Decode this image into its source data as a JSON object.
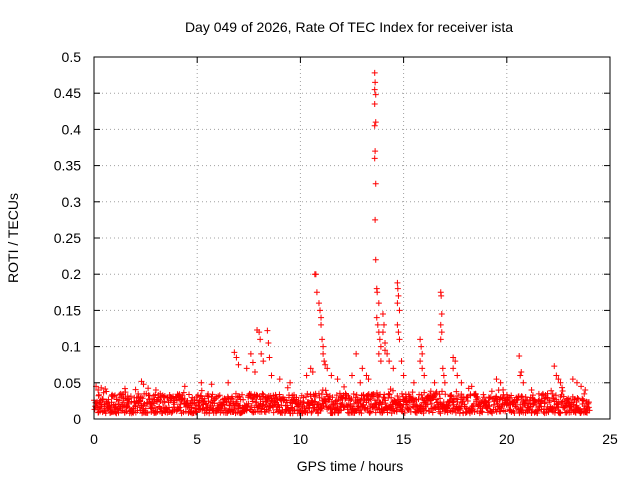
{
  "chart_data": {
    "type": "scatter",
    "title": "Day 049 of 2026, Rate Of TEC Index for receiver ista",
    "xlabel": "GPS time / hours",
    "ylabel": "ROTI / TECUs",
    "xlim": [
      0,
      25
    ],
    "ylim": [
      0,
      0.5
    ],
    "x_ticks": [
      "0",
      "5",
      "10",
      "15",
      "20",
      "25"
    ],
    "y_ticks": [
      "0",
      "0.05",
      "0.1",
      "0.15",
      "0.2",
      "0.25",
      "0.3",
      "0.35",
      "0.4",
      "0.45",
      "0.5"
    ],
    "grid": true,
    "marker": "+",
    "color": "#ff0000",
    "series": [
      {
        "name": "ROTI",
        "background": {
          "x_range": [
            0,
            24
          ],
          "baseline_min": 0.008,
          "baseline_max": 0.035,
          "note": "dense continuous band of ROTI values between roughly 0.01 and 0.04 TECU/min"
        },
        "points": [
          [
            0.1,
            0.045
          ],
          [
            0.2,
            0.04
          ],
          [
            0.35,
            0.043
          ],
          [
            0.6,
            0.038
          ],
          [
            1.5,
            0.042
          ],
          [
            2.3,
            0.052
          ],
          [
            2.4,
            0.048
          ],
          [
            3.0,
            0.04
          ],
          [
            4.4,
            0.045
          ],
          [
            5.2,
            0.05
          ],
          [
            5.7,
            0.048
          ],
          [
            6.5,
            0.05
          ],
          [
            6.8,
            0.092
          ],
          [
            6.9,
            0.085
          ],
          [
            7.0,
            0.075
          ],
          [
            7.4,
            0.07
          ],
          [
            7.6,
            0.09
          ],
          [
            7.7,
            0.078
          ],
          [
            7.8,
            0.065
          ],
          [
            7.9,
            0.123
          ],
          [
            8.0,
            0.12
          ],
          [
            8.05,
            0.11
          ],
          [
            8.1,
            0.09
          ],
          [
            8.2,
            0.08
          ],
          [
            8.4,
            0.122
          ],
          [
            8.45,
            0.105
          ],
          [
            8.5,
            0.085
          ],
          [
            8.6,
            0.06
          ],
          [
            9.0,
            0.055
          ],
          [
            9.5,
            0.05
          ],
          [
            10.3,
            0.06
          ],
          [
            10.5,
            0.07
          ],
          [
            10.6,
            0.065
          ],
          [
            10.7,
            0.2
          ],
          [
            10.75,
            0.2
          ],
          [
            10.8,
            0.175
          ],
          [
            10.9,
            0.16
          ],
          [
            10.95,
            0.15
          ],
          [
            11.0,
            0.14
          ],
          [
            11.0,
            0.13
          ],
          [
            11.05,
            0.11
          ],
          [
            11.1,
            0.1
          ],
          [
            11.1,
            0.09
          ],
          [
            11.15,
            0.08
          ],
          [
            11.2,
            0.075
          ],
          [
            11.3,
            0.07
          ],
          [
            11.5,
            0.06
          ],
          [
            11.8,
            0.055
          ],
          [
            12.5,
            0.06
          ],
          [
            12.7,
            0.09
          ],
          [
            12.9,
            0.05
          ],
          [
            13.0,
            0.07
          ],
          [
            13.2,
            0.06
          ],
          [
            13.3,
            0.055
          ],
          [
            13.6,
            0.478
          ],
          [
            13.62,
            0.465
          ],
          [
            13.6,
            0.455
          ],
          [
            13.65,
            0.448
          ],
          [
            13.6,
            0.435
          ],
          [
            13.65,
            0.41
          ],
          [
            13.6,
            0.405
          ],
          [
            13.62,
            0.37
          ],
          [
            13.6,
            0.36
          ],
          [
            13.65,
            0.325
          ],
          [
            13.62,
            0.275
          ],
          [
            13.65,
            0.22
          ],
          [
            13.7,
            0.18
          ],
          [
            13.72,
            0.175
          ],
          [
            13.8,
            0.16
          ],
          [
            13.7,
            0.14
          ],
          [
            13.75,
            0.13
          ],
          [
            13.8,
            0.12
          ],
          [
            13.85,
            0.11
          ],
          [
            13.9,
            0.1
          ],
          [
            13.8,
            0.09
          ],
          [
            13.9,
            0.08
          ],
          [
            14.0,
            0.145
          ],
          [
            14.05,
            0.13
          ],
          [
            14.0,
            0.12
          ],
          [
            14.1,
            0.105
          ],
          [
            14.1,
            0.095
          ],
          [
            14.2,
            0.09
          ],
          [
            14.3,
            0.08
          ],
          [
            14.5,
            0.07
          ],
          [
            14.7,
            0.188
          ],
          [
            14.72,
            0.18
          ],
          [
            14.75,
            0.17
          ],
          [
            14.7,
            0.16
          ],
          [
            14.8,
            0.15
          ],
          [
            14.7,
            0.13
          ],
          [
            14.75,
            0.12
          ],
          [
            14.8,
            0.11
          ],
          [
            14.9,
            0.08
          ],
          [
            15.0,
            0.06
          ],
          [
            15.5,
            0.05
          ],
          [
            15.8,
            0.11
          ],
          [
            15.85,
            0.1
          ],
          [
            15.9,
            0.09
          ],
          [
            15.8,
            0.08
          ],
          [
            15.9,
            0.07
          ],
          [
            16.0,
            0.06
          ],
          [
            16.5,
            0.05
          ],
          [
            16.8,
            0.175
          ],
          [
            16.82,
            0.17
          ],
          [
            16.85,
            0.145
          ],
          [
            16.8,
            0.13
          ],
          [
            16.85,
            0.12
          ],
          [
            16.8,
            0.11
          ],
          [
            16.9,
            0.07
          ],
          [
            16.95,
            0.06
          ],
          [
            17.0,
            0.05
          ],
          [
            17.4,
            0.085
          ],
          [
            17.5,
            0.08
          ],
          [
            17.4,
            0.07
          ],
          [
            17.6,
            0.06
          ],
          [
            17.8,
            0.05
          ],
          [
            18.3,
            0.045
          ],
          [
            19.5,
            0.055
          ],
          [
            19.7,
            0.05
          ],
          [
            20.6,
            0.087
          ],
          [
            20.7,
            0.065
          ],
          [
            20.65,
            0.06
          ],
          [
            20.8,
            0.05
          ],
          [
            21.2,
            0.04
          ],
          [
            22.3,
            0.073
          ],
          [
            22.4,
            0.06
          ],
          [
            22.5,
            0.055
          ],
          [
            22.6,
            0.05
          ],
          [
            23.2,
            0.055
          ],
          [
            23.4,
            0.05
          ],
          [
            23.6,
            0.045
          ],
          [
            23.8,
            0.04
          ]
        ]
      }
    ]
  }
}
